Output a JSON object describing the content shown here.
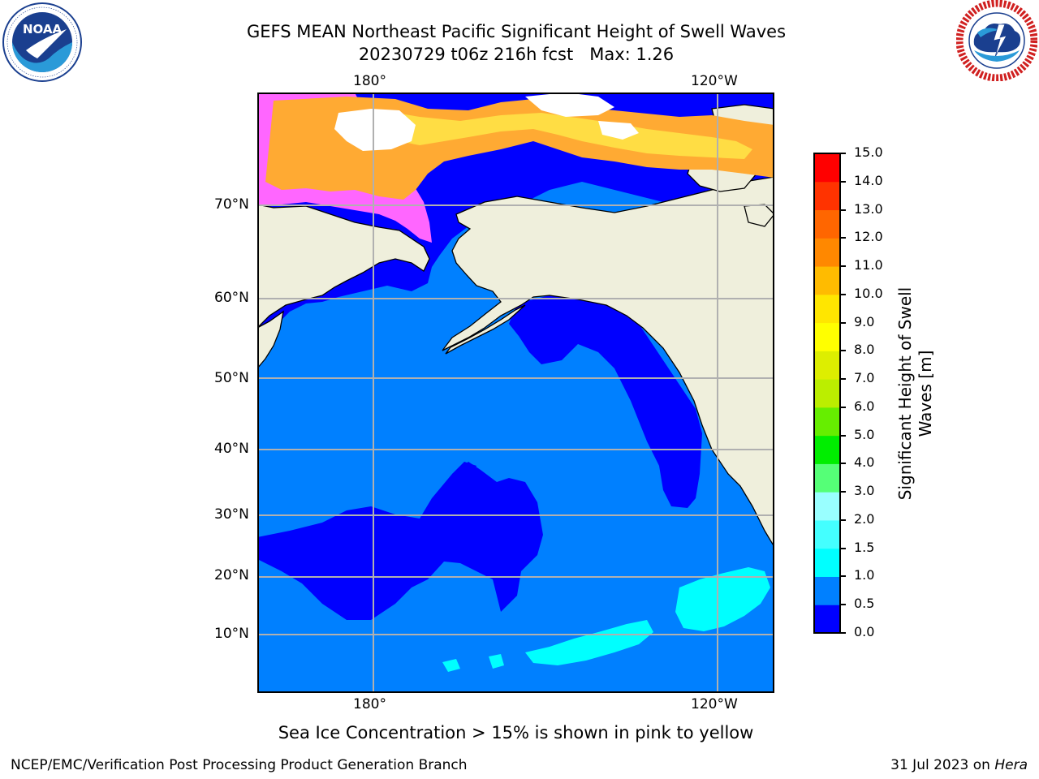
{
  "header": {
    "title_line1": "GEFS MEAN Northeast Pacific Significant Height of Swell Waves",
    "title_line2": "20230729 t06z 216h fcst   Max: 1.26"
  },
  "logos": {
    "left": {
      "name": "noaa-logo",
      "text": "NOAA",
      "ring_text": "NATIONAL OCEANIC AND ATMOSPHERIC ADMINISTRATION · U.S. DEPARTMENT OF COMMERCE"
    },
    "right": {
      "name": "nws-logo",
      "ring_text": "NATIONAL WEATHER SERVICE"
    }
  },
  "map": {
    "lon_ticks": [
      "180°",
      "120°W"
    ],
    "lat_ticks": [
      "70°N",
      "60°N",
      "50°N",
      "40°N",
      "30°N",
      "20°N",
      "10°N"
    ],
    "colors": {
      "ocean_main": "#0080ff",
      "ocean_low": "#0000ff",
      "swell_high": "#00ffff",
      "land": "#efefdc",
      "ice_pink": "#ff66ff",
      "ice_orange": "#ffaa33",
      "ice_yellow": "#ffdd44",
      "grid": "#b0b0b0"
    }
  },
  "colorbar": {
    "ticks": [
      "15.0",
      "14.0",
      "13.0",
      "12.0",
      "11.0",
      "10.0",
      "9.0",
      "8.0",
      "7.0",
      "6.0",
      "5.0",
      "4.0",
      "3.0",
      "2.0",
      "1.5",
      "1.0",
      "0.5",
      "0.0"
    ],
    "colors_bottom_to_top": [
      "#0000ff",
      "#0080ff",
      "#00ffff",
      "#44ffff",
      "#99ffff",
      "#55ff77",
      "#00ee00",
      "#66ee00",
      "#bbee00",
      "#ddee00",
      "#ffff00",
      "#ffe600",
      "#ffbb00",
      "#ff8800",
      "#ff6600",
      "#ff3300",
      "#ff0000"
    ],
    "title_line1": "Significant Height of Swell",
    "title_line2": "Waves [m]"
  },
  "note": "Sea Ice Concentration > 15% is shown in pink to yellow",
  "footer": {
    "left": "NCEP/EMC/Verification Post Processing Product Generation Branch",
    "right_date": "31 Jul 2023 on ",
    "right_host": "Hera"
  }
}
